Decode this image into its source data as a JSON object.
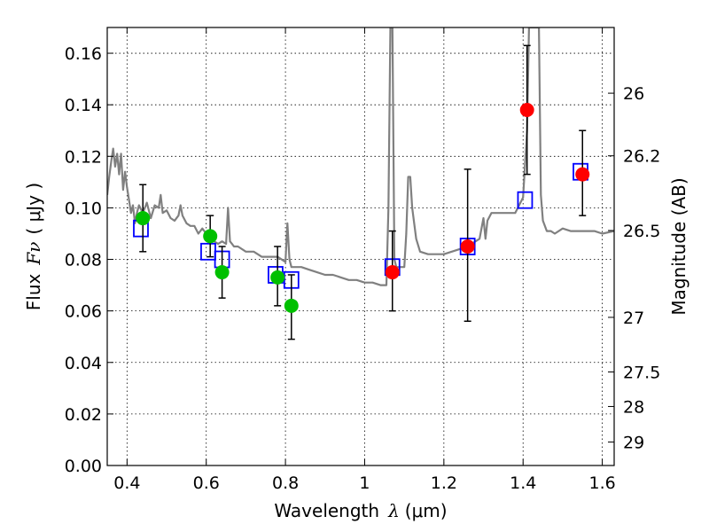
{
  "chart_data": {
    "type": "scatter",
    "xlabel": "Wavelength",
    "xlabel_symbol": "λ",
    "xlabel_unit": "(μm)",
    "ylabel": "Flux",
    "ylabel_symbol": "Fν",
    "ylabel_unit": "( μJy )",
    "y2label": "Magnitude (AB)",
    "xlim": [
      0.35,
      1.63
    ],
    "ylim": [
      0.0,
      0.17
    ],
    "x_ticks": [
      0.4,
      0.6,
      0.8,
      1.0,
      1.2,
      1.4,
      1.6
    ],
    "x_tick_labels": [
      "0.4",
      "0.6",
      "0.8",
      "1",
      "1.2",
      "1.4",
      "1.6"
    ],
    "y_ticks": [
      0.0,
      0.02,
      0.04,
      0.06,
      0.08,
      0.1,
      0.12,
      0.14,
      0.16
    ],
    "y_tick_labels": [
      "0.00",
      "0.02",
      "0.04",
      "0.06",
      "0.08",
      "0.10",
      "0.12",
      "0.14",
      "0.16"
    ],
    "y2_ticks": [
      {
        "label": "26",
        "flux": 0.1445
      },
      {
        "label": "26.2",
        "flux": 0.1202
      },
      {
        "label": "26.5",
        "flux": 0.0912
      },
      {
        "label": "27",
        "flux": 0.0575
      },
      {
        "label": "27.5",
        "flux": 0.0363
      },
      {
        "label": "28",
        "flux": 0.0229
      },
      {
        "label": "29",
        "flux": 0.0091
      }
    ],
    "grid": true,
    "colors": {
      "spectrum": "#808080",
      "optical": "#00c000",
      "nir": "#ff0000",
      "model": "#0000ff",
      "errorbar": "#000000"
    },
    "series": [
      {
        "kind": "spectrum",
        "x": [
          0.35,
          0.355,
          0.36,
          0.365,
          0.37,
          0.375,
          0.38,
          0.385,
          0.39,
          0.395,
          0.4,
          0.405,
          0.41,
          0.415,
          0.42,
          0.425,
          0.43,
          0.44,
          0.45,
          0.46,
          0.47,
          0.48,
          0.485,
          0.49,
          0.5,
          0.51,
          0.52,
          0.53,
          0.535,
          0.54,
          0.55,
          0.56,
          0.57,
          0.58,
          0.59,
          0.6,
          0.61,
          0.62,
          0.63,
          0.64,
          0.65,
          0.655,
          0.66,
          0.665,
          0.67,
          0.68,
          0.7,
          0.72,
          0.74,
          0.76,
          0.78,
          0.8,
          0.805,
          0.81,
          0.815,
          0.82,
          0.84,
          0.86,
          0.88,
          0.9,
          0.92,
          0.94,
          0.96,
          0.98,
          1.0,
          1.02,
          1.04,
          1.055,
          1.06,
          1.065,
          1.07,
          1.075,
          1.08,
          1.09,
          1.1,
          1.105,
          1.11,
          1.115,
          1.12,
          1.13,
          1.14,
          1.16,
          1.18,
          1.2,
          1.22,
          1.24,
          1.26,
          1.28,
          1.29,
          1.3,
          1.305,
          1.31,
          1.32,
          1.34,
          1.36,
          1.38,
          1.4,
          1.41,
          1.415,
          1.42,
          1.43,
          1.44,
          1.445,
          1.45,
          1.46,
          1.47,
          1.48,
          1.5,
          1.52,
          1.54,
          1.56,
          1.58,
          1.6,
          1.63
        ],
        "y": [
          0.105,
          0.112,
          0.118,
          0.123,
          0.116,
          0.121,
          0.113,
          0.121,
          0.107,
          0.114,
          0.108,
          0.103,
          0.098,
          0.101,
          0.094,
          0.098,
          0.101,
          0.098,
          0.102,
          0.096,
          0.101,
          0.1,
          0.105,
          0.098,
          0.099,
          0.096,
          0.095,
          0.097,
          0.101,
          0.097,
          0.094,
          0.093,
          0.093,
          0.09,
          0.092,
          0.09,
          0.089,
          0.087,
          0.086,
          0.087,
          0.086,
          0.1,
          0.087,
          0.086,
          0.085,
          0.085,
          0.083,
          0.083,
          0.081,
          0.081,
          0.081,
          0.079,
          0.094,
          0.08,
          0.077,
          0.077,
          0.077,
          0.076,
          0.075,
          0.074,
          0.074,
          0.073,
          0.072,
          0.072,
          0.071,
          0.071,
          0.07,
          0.07,
          0.1,
          0.17,
          0.17,
          0.08,
          0.077,
          0.077,
          0.077,
          0.09,
          0.112,
          0.112,
          0.1,
          0.088,
          0.083,
          0.082,
          0.082,
          0.082,
          0.083,
          0.084,
          0.085,
          0.087,
          0.088,
          0.096,
          0.088,
          0.095,
          0.098,
          0.098,
          0.098,
          0.098,
          0.104,
          0.13,
          0.17,
          0.17,
          0.17,
          0.17,
          0.105,
          0.095,
          0.091,
          0.091,
          0.09,
          0.092,
          0.091,
          0.091,
          0.091,
          0.091,
          0.09,
          0.091
        ]
      },
      {
        "kind": "model",
        "x": [
          0.435,
          0.605,
          0.64,
          0.775,
          0.815,
          1.07,
          1.26,
          1.405,
          1.545
        ],
        "y": [
          0.092,
          0.083,
          0.08,
          0.074,
          0.072,
          0.077,
          0.085,
          0.103,
          0.114
        ]
      },
      {
        "kind": "optical",
        "x": [
          0.44,
          0.61,
          0.64,
          0.78,
          0.815
        ],
        "y": [
          0.096,
          0.089,
          0.075,
          0.073,
          0.062
        ],
        "err_low": [
          0.083,
          0.081,
          0.065,
          0.062,
          0.049
        ],
        "err_high": [
          0.109,
          0.097,
          0.085,
          0.085,
          0.074
        ]
      },
      {
        "kind": "nir",
        "x": [
          1.07,
          1.26,
          1.41,
          1.55
        ],
        "y": [
          0.075,
          0.085,
          0.138,
          0.113
        ],
        "err_low": [
          0.06,
          0.056,
          0.113,
          0.097
        ],
        "err_high": [
          0.091,
          0.115,
          0.163,
          0.13
        ]
      }
    ]
  }
}
